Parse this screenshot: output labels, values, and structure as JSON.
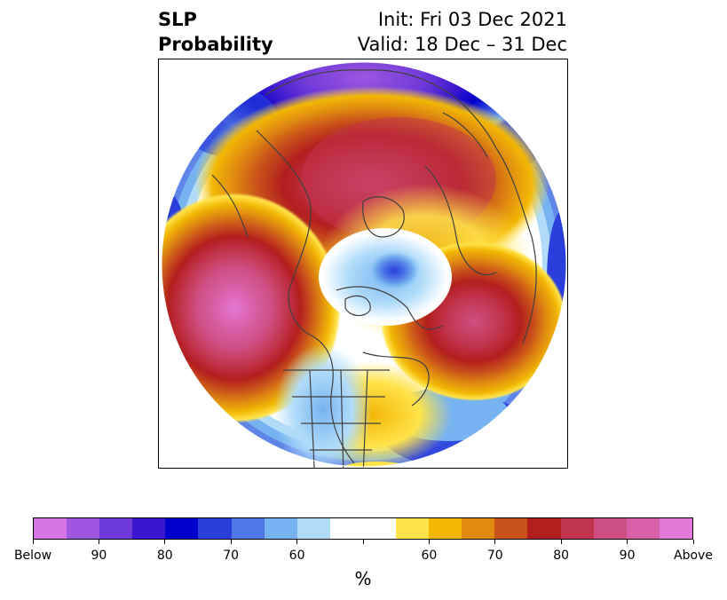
{
  "header": {
    "left_line1": "SLP",
    "left_line2": "Probability",
    "right_line1": "Init: Fri 03 Dec 2021",
    "right_line2": "Valid: 18 Dec – 31 Dec"
  },
  "colorbar": {
    "colors": [
      "#d675e6",
      "#9f56e0",
      "#6f39d9",
      "#3a17cf",
      "#0000cc",
      "#2a3edb",
      "#4f78e6",
      "#77b3f0",
      "#b0dcfa",
      "#ffffff",
      "#ffffff",
      "#ffe34a",
      "#f2b705",
      "#e08b10",
      "#c9521a",
      "#b21f1f",
      "#c2344d",
      "#ce4f83",
      "#d960a8",
      "#e47ad7"
    ],
    "tick_labels": [
      "Below",
      "90",
      "80",
      "70",
      "60",
      "",
      "60",
      "70",
      "80",
      "90",
      "Above"
    ],
    "unit": "%"
  }
}
